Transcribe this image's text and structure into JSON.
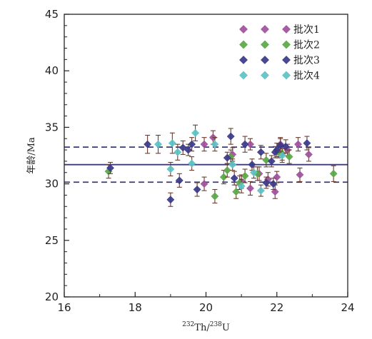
{
  "chart_data": {
    "type": "scatter",
    "xlabel": {
      "super1": "232",
      "part1": "Th/",
      "super2": "238",
      "part2": "U"
    },
    "ylabel": "年龄/Ma",
    "xlim": [
      16,
      24
    ],
    "ylim": [
      20,
      45
    ],
    "xticks": [
      "16",
      "18",
      "20",
      "22",
      "24"
    ],
    "yticks": [
      "20",
      "25",
      "30",
      "35",
      "40",
      "45"
    ],
    "reference_lines": [
      {
        "y": 31.7,
        "style": "solid",
        "color": "#3a3a7a"
      },
      {
        "y": 33.25,
        "style": "dashed",
        "color": "#3a3a7a"
      },
      {
        "y": 30.15,
        "style": "dashed",
        "color": "#3a3a7a"
      }
    ],
    "legend_position": "top-right",
    "error_bar_color": "#6b3b2e",
    "series": [
      {
        "name": "批次1",
        "color": "#a0509c",
        "points": [
          {
            "x": 19.95,
            "y": 33.5,
            "err": 0.6
          },
          {
            "x": 20.2,
            "y": 34.1,
            "err": 0.6
          },
          {
            "x": 20.75,
            "y": 32.6,
            "err": 0.6
          },
          {
            "x": 21.0,
            "y": 30.2,
            "err": 0.6
          },
          {
            "x": 21.25,
            "y": 33.5,
            "err": 0.5
          },
          {
            "x": 21.25,
            "y": 29.6,
            "err": 0.6
          },
          {
            "x": 21.5,
            "y": 30.9,
            "err": 0.6
          },
          {
            "x": 21.75,
            "y": 30.4,
            "err": 0.6
          },
          {
            "x": 21.95,
            "y": 29.3,
            "err": 0.6
          },
          {
            "x": 22.0,
            "y": 30.6,
            "err": 0.5
          },
          {
            "x": 22.1,
            "y": 33.5,
            "err": 0.6
          },
          {
            "x": 22.3,
            "y": 33.0,
            "err": 0.5
          },
          {
            "x": 22.6,
            "y": 33.5,
            "err": 0.6
          },
          {
            "x": 22.65,
            "y": 30.8,
            "err": 0.6
          },
          {
            "x": 22.9,
            "y": 32.6,
            "err": 0.6
          },
          {
            "x": 19.95,
            "y": 30.0,
            "err": 0.6
          }
        ]
      },
      {
        "name": "批次2",
        "color": "#5aa845",
        "points": [
          {
            "x": 17.25,
            "y": 31.1,
            "err": 0.6
          },
          {
            "x": 20.25,
            "y": 28.9,
            "err": 0.6
          },
          {
            "x": 20.5,
            "y": 30.6,
            "err": 0.6
          },
          {
            "x": 20.6,
            "y": 31.2,
            "err": 0.6
          },
          {
            "x": 20.7,
            "y": 32.4,
            "err": 0.6
          },
          {
            "x": 20.85,
            "y": 29.3,
            "err": 0.6
          },
          {
            "x": 21.1,
            "y": 30.7,
            "err": 0.6
          },
          {
            "x": 21.45,
            "y": 30.9,
            "err": 0.6
          },
          {
            "x": 21.7,
            "y": 32.1,
            "err": 0.6
          },
          {
            "x": 22.05,
            "y": 32.8,
            "err": 0.5
          },
          {
            "x": 22.15,
            "y": 32.7,
            "err": 0.6
          },
          {
            "x": 22.35,
            "y": 32.4,
            "err": 0.6
          },
          {
            "x": 23.6,
            "y": 30.9,
            "err": 0.7
          },
          {
            "x": 20.95,
            "y": 30.1,
            "err": 0.6
          }
        ]
      },
      {
        "name": "批次3",
        "color": "#3a3a8a",
        "points": [
          {
            "x": 17.3,
            "y": 31.4,
            "err": 0.5
          },
          {
            "x": 18.35,
            "y": 33.5,
            "err": 0.8
          },
          {
            "x": 19.0,
            "y": 28.6,
            "err": 0.6
          },
          {
            "x": 19.25,
            "y": 30.3,
            "err": 0.6
          },
          {
            "x": 19.35,
            "y": 33.2,
            "err": 0.6
          },
          {
            "x": 19.5,
            "y": 33.0,
            "err": 0.5
          },
          {
            "x": 19.6,
            "y": 33.5,
            "err": 0.6
          },
          {
            "x": 19.75,
            "y": 29.5,
            "err": 0.6
          },
          {
            "x": 20.6,
            "y": 32.3,
            "err": 0.5
          },
          {
            "x": 20.7,
            "y": 34.2,
            "err": 0.7
          },
          {
            "x": 20.8,
            "y": 30.5,
            "err": 0.6
          },
          {
            "x": 21.1,
            "y": 33.5,
            "err": 0.7
          },
          {
            "x": 21.3,
            "y": 31.7,
            "err": 0.5
          },
          {
            "x": 21.55,
            "y": 32.8,
            "err": 0.6
          },
          {
            "x": 21.7,
            "y": 30.1,
            "err": 0.5
          },
          {
            "x": 21.85,
            "y": 32.0,
            "err": 0.5
          },
          {
            "x": 21.95,
            "y": 32.8,
            "err": 0.5
          },
          {
            "x": 22.0,
            "y": 33.0,
            "err": 0.6
          },
          {
            "x": 22.1,
            "y": 33.4,
            "err": 0.6
          },
          {
            "x": 22.25,
            "y": 33.3,
            "err": 0.6
          },
          {
            "x": 22.85,
            "y": 33.6,
            "err": 0.6
          },
          {
            "x": 21.9,
            "y": 30.0,
            "err": 0.5
          }
        ]
      },
      {
        "name": "批次4",
        "color": "#5cc1c4",
        "points": [
          {
            "x": 18.65,
            "y": 33.5,
            "err": 0.8
          },
          {
            "x": 19.0,
            "y": 31.3,
            "err": 0.6
          },
          {
            "x": 19.05,
            "y": 33.6,
            "err": 0.9
          },
          {
            "x": 19.2,
            "y": 32.8,
            "err": 0.7
          },
          {
            "x": 19.6,
            "y": 31.8,
            "err": 0.6
          },
          {
            "x": 19.7,
            "y": 34.5,
            "err": 0.7
          },
          {
            "x": 20.25,
            "y": 33.5,
            "err": 0.6
          },
          {
            "x": 21.0,
            "y": 29.8,
            "err": 0.6
          },
          {
            "x": 21.35,
            "y": 31.0,
            "err": 0.5
          },
          {
            "x": 21.55,
            "y": 29.4,
            "err": 0.5
          },
          {
            "x": 22.15,
            "y": 32.5,
            "err": 0.6
          },
          {
            "x": 20.75,
            "y": 31.7,
            "err": 0.5
          }
        ]
      }
    ]
  }
}
